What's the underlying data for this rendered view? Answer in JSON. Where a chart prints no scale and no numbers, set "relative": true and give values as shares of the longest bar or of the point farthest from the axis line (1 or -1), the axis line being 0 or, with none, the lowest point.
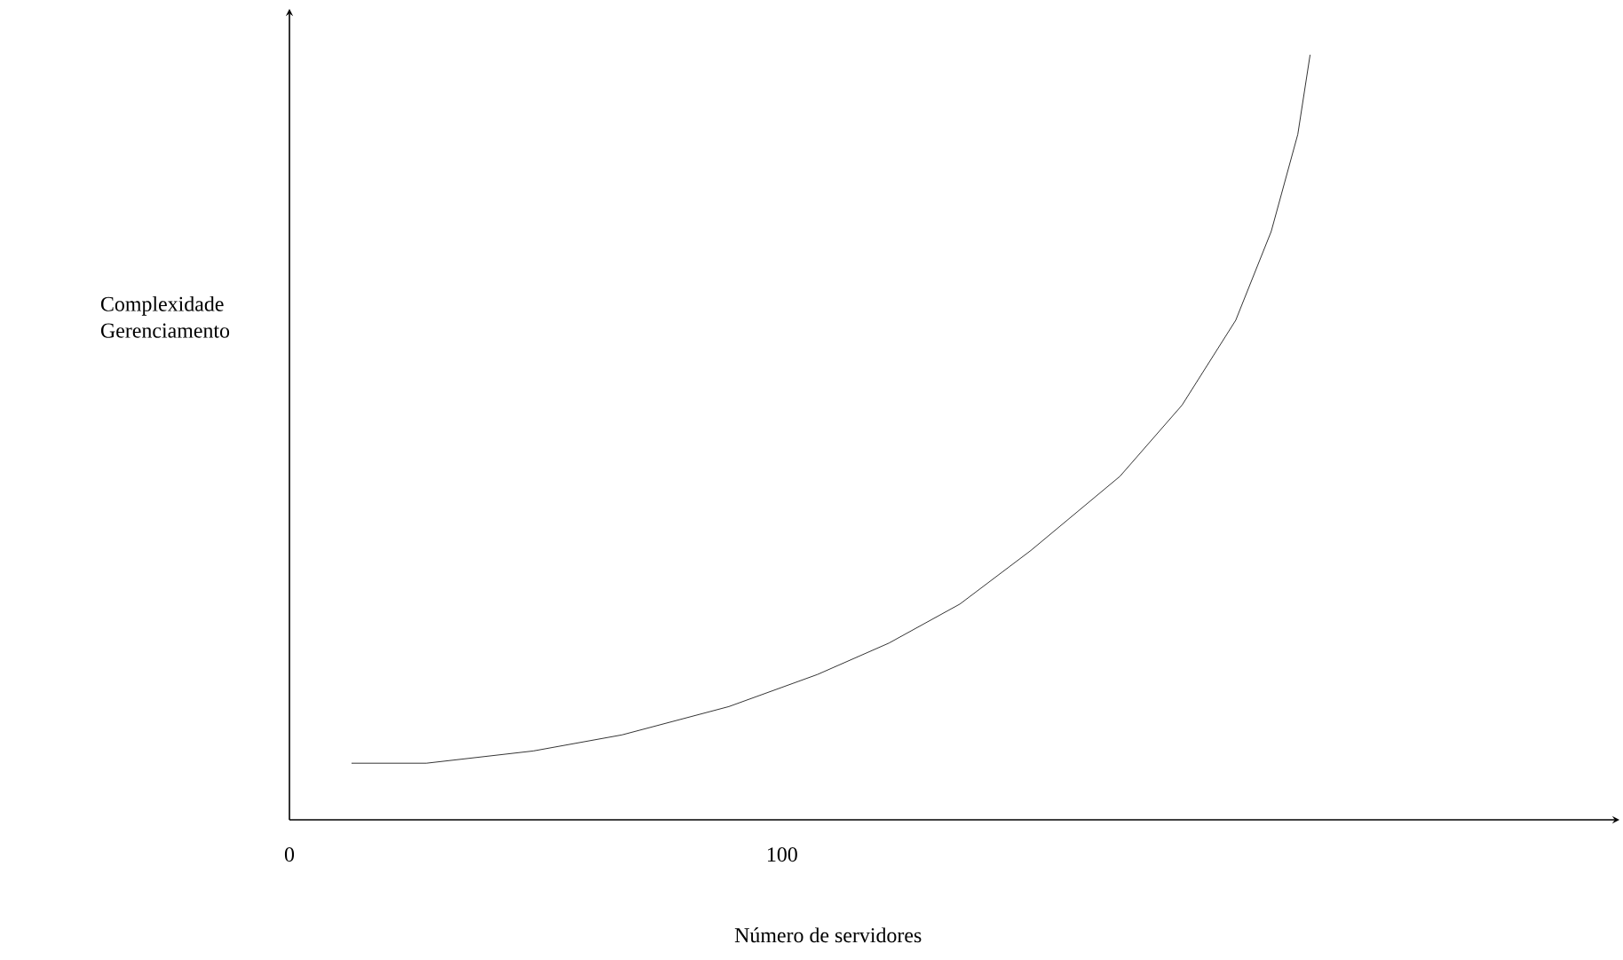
{
  "chart_data": {
    "type": "line",
    "relative": true,
    "xlabel": "Número de servidores",
    "ylabel": "Complexidade Gerenciamento",
    "xlim": [
      0,
      270
    ],
    "xticks": [
      0,
      100
    ],
    "marker": "none",
    "line_style": "solid",
    "series": [
      {
        "color": "#000000",
        "x": [
          12.6,
          27.8,
          49.5,
          67.5,
          89.2,
          107.2,
          121.7,
          136.1,
          150.5,
          168.6,
          181.2,
          192.1,
          199.3,
          204.7,
          207.2
        ],
        "values": [
          0.074,
          0.074,
          0.09,
          0.111,
          0.148,
          0.19,
          0.231,
          0.282,
          0.352,
          0.449,
          0.542,
          0.653,
          0.769,
          0.896,
          1.0
        ]
      }
    ]
  }
}
